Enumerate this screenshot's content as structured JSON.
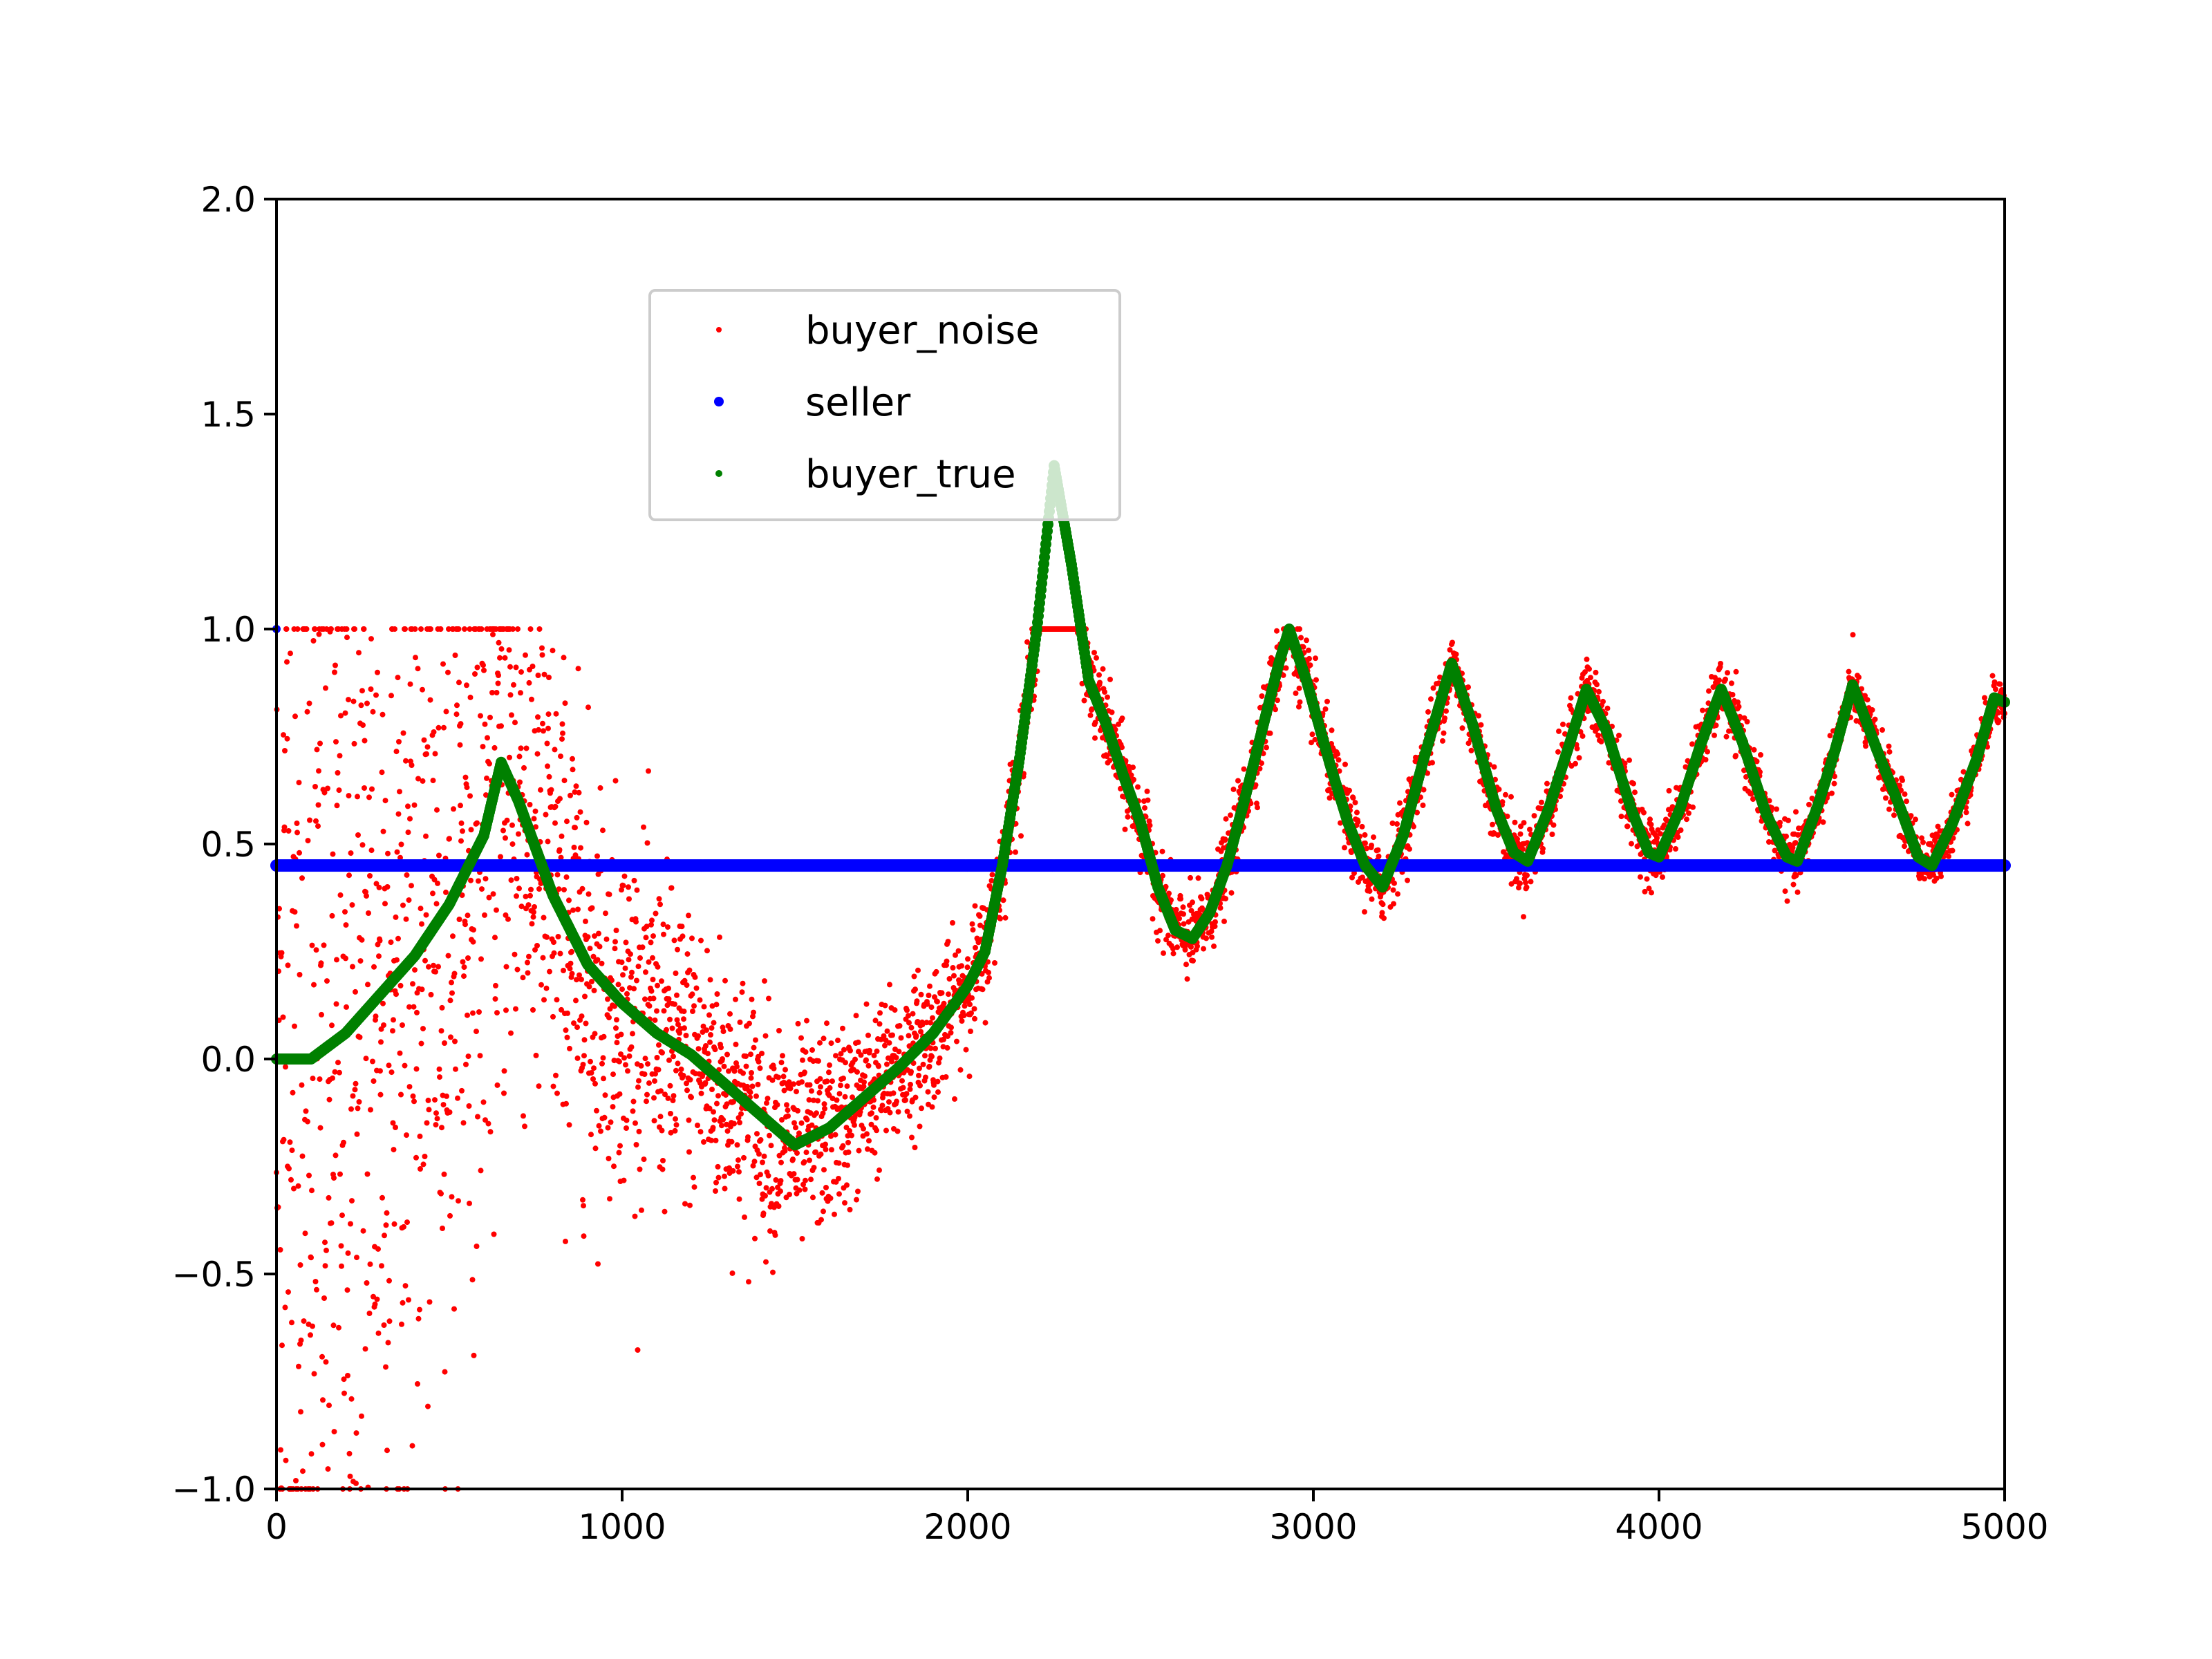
{
  "chart_data": {
    "type": "scatter",
    "title": "",
    "xlabel": "",
    "ylabel": "",
    "xlim": [
      0,
      5000
    ],
    "ylim": [
      -1.0,
      2.0
    ],
    "x_ticks": [
      "0",
      "1000",
      "2000",
      "3000",
      "4000",
      "5000"
    ],
    "y_ticks": [
      "2.0",
      "1.5",
      "1.0",
      "0.5",
      "0.0",
      "−0.5",
      "−1.0"
    ],
    "grid": false,
    "legend_position": "upper-center",
    "series": [
      {
        "name": "buyer_noise",
        "color": "#ff0000",
        "style": "scatter-small",
        "clip": [
          -1.0,
          1.0
        ],
        "noise_profile": [
          [
            0,
            0.85
          ],
          [
            700,
            0.35
          ],
          [
            1000,
            0.2
          ],
          [
            1500,
            0.12
          ],
          [
            2000,
            0.07
          ],
          [
            2200,
            0.05
          ],
          [
            5000,
            0.03
          ]
        ]
      },
      {
        "name": "seller",
        "color": "#0000ff",
        "style": "scatter-dense",
        "points": [
          [
            0,
            1.0
          ],
          [
            0,
            0.45
          ],
          [
            5000,
            0.45
          ]
        ]
      },
      {
        "name": "buyer_true",
        "color": "#008000",
        "style": "scatter-dense",
        "points": [
          [
            0,
            0.0
          ],
          [
            100,
            0.0
          ],
          [
            200,
            0.06
          ],
          [
            300,
            0.15
          ],
          [
            400,
            0.24
          ],
          [
            500,
            0.36
          ],
          [
            600,
            0.52
          ],
          [
            650,
            0.69
          ],
          [
            700,
            0.6
          ],
          [
            800,
            0.38
          ],
          [
            900,
            0.22
          ],
          [
            1000,
            0.13
          ],
          [
            1100,
            0.06
          ],
          [
            1200,
            0.01
          ],
          [
            1300,
            -0.06
          ],
          [
            1400,
            -0.13
          ],
          [
            1500,
            -0.2
          ],
          [
            1600,
            -0.16
          ],
          [
            1700,
            -0.09
          ],
          [
            1800,
            -0.02
          ],
          [
            1900,
            0.06
          ],
          [
            2000,
            0.17
          ],
          [
            2050,
            0.25
          ],
          [
            2100,
            0.45
          ],
          [
            2150,
            0.7
          ],
          [
            2200,
            1.0
          ],
          [
            2250,
            1.38
          ],
          [
            2300,
            1.15
          ],
          [
            2350,
            0.88
          ],
          [
            2400,
            0.78
          ],
          [
            2450,
            0.66
          ],
          [
            2500,
            0.55
          ],
          [
            2550,
            0.4
          ],
          [
            2600,
            0.3
          ],
          [
            2650,
            0.28
          ],
          [
            2700,
            0.34
          ],
          [
            2750,
            0.45
          ],
          [
            2800,
            0.6
          ],
          [
            2850,
            0.76
          ],
          [
            2900,
            0.92
          ],
          [
            2930,
            1.0
          ],
          [
            2980,
            0.88
          ],
          [
            3050,
            0.68
          ],
          [
            3100,
            0.55
          ],
          [
            3150,
            0.45
          ],
          [
            3200,
            0.4
          ],
          [
            3260,
            0.52
          ],
          [
            3320,
            0.7
          ],
          [
            3400,
            0.92
          ],
          [
            3460,
            0.78
          ],
          [
            3530,
            0.58
          ],
          [
            3580,
            0.48
          ],
          [
            3620,
            0.46
          ],
          [
            3680,
            0.58
          ],
          [
            3740,
            0.73
          ],
          [
            3790,
            0.86
          ],
          [
            3850,
            0.76
          ],
          [
            3920,
            0.58
          ],
          [
            3970,
            0.48
          ],
          [
            4000,
            0.47
          ],
          [
            4060,
            0.58
          ],
          [
            4120,
            0.73
          ],
          [
            4180,
            0.86
          ],
          [
            4240,
            0.74
          ],
          [
            4310,
            0.57
          ],
          [
            4370,
            0.47
          ],
          [
            4400,
            0.46
          ],
          [
            4460,
            0.59
          ],
          [
            4510,
            0.72
          ],
          [
            4560,
            0.87
          ],
          [
            4630,
            0.72
          ],
          [
            4700,
            0.58
          ],
          [
            4750,
            0.47
          ],
          [
            4790,
            0.45
          ],
          [
            4850,
            0.55
          ],
          [
            4920,
            0.7
          ],
          [
            4970,
            0.84
          ],
          [
            5000,
            0.83
          ]
        ]
      }
    ]
  }
}
